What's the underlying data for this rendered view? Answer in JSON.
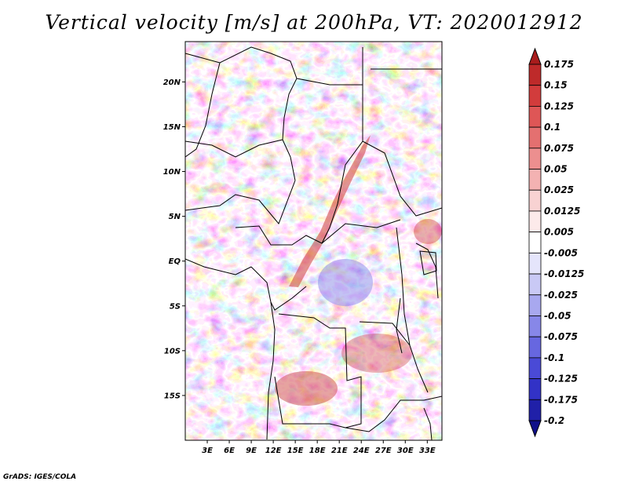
{
  "title": "Vertical velocity [m/s] at 200hPa, VT: 2020012912",
  "credit": "GrADS: IGES/COLA",
  "map": {
    "lon_range": [
      0,
      35
    ],
    "lat_range": [
      -20,
      24.5
    ],
    "lat_ticks": [
      "20N",
      "15N",
      "10N",
      "5N",
      "EQ",
      "5S",
      "10S",
      "15S"
    ],
    "lat_tick_values": [
      20,
      15,
      10,
      5,
      0,
      -5,
      -10,
      -15
    ],
    "lon_ticks": [
      "3E",
      "6E",
      "9E",
      "12E",
      "15E",
      "18E",
      "21E",
      "24E",
      "27E",
      "30E",
      "33E"
    ],
    "lon_tick_values": [
      3,
      6,
      9,
      12,
      15,
      18,
      21,
      24,
      27,
      30,
      33
    ]
  },
  "colorbar": {
    "labels": [
      "0.175",
      "0.15",
      "0.125",
      "0.1",
      "0.075",
      "0.05",
      "0.025",
      "0.0125",
      "0.005",
      "-0.005",
      "-0.0125",
      "-0.025",
      "-0.05",
      "-0.075",
      "-0.1",
      "-0.125",
      "-0.175",
      "-0.2"
    ],
    "colors": [
      "#a81c1c",
      "#be2a2a",
      "#d23c3c",
      "#de5656",
      "#e47070",
      "#ec8f8f",
      "#f3b2b2",
      "#f8d2d2",
      "#fceaea",
      "#ffffff",
      "#e5e5fb",
      "#c9c9f5",
      "#a8a8ef",
      "#8787e8",
      "#6767e0",
      "#4a4ad6",
      "#3232c6",
      "#2020a8",
      "#10108a"
    ]
  }
}
